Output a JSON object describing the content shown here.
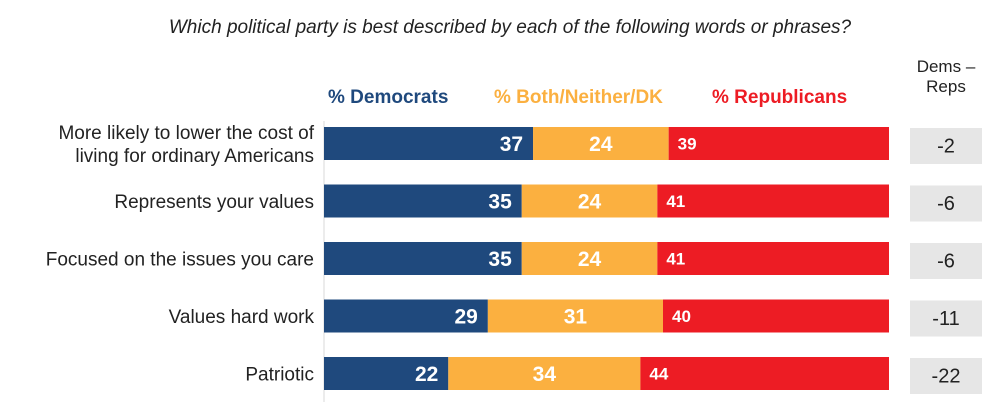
{
  "chart_data": {
    "type": "bar",
    "orientation": "horizontal",
    "stacked": true,
    "title": "Which political party is best described by each of the following words or phrases?",
    "categories": [
      [
        "More likely to lower the cost of",
        "living for ordinary Americans"
      ],
      [
        "Represents your values"
      ],
      [
        "Focused on the issues you care"
      ],
      [
        "Values hard work"
      ],
      [
        "Patriotic"
      ]
    ],
    "series": [
      {
        "name": "% Democrats",
        "color": "#1f497d",
        "values": [
          37,
          35,
          35,
          29,
          22
        ]
      },
      {
        "name": "% Both/Neither/DK",
        "color": "#fbb040",
        "values": [
          24,
          24,
          24,
          31,
          34
        ]
      },
      {
        "name": "% Republicans",
        "color": "#ed1c24",
        "values": [
          39,
          41,
          41,
          40,
          44
        ]
      }
    ],
    "difference": {
      "header": [
        "Dems –",
        "Reps"
      ],
      "values": [
        "-2",
        "-6",
        "-6",
        "-11",
        "-22"
      ],
      "box_color": "#e6e6e6"
    },
    "xlim": [
      0,
      100
    ],
    "grid": false,
    "legend": "top"
  }
}
